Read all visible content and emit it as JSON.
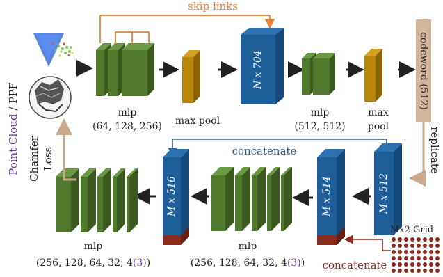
{
  "colors": {
    "green_front": "#4f7a2e",
    "green_side": "#3a5a1f",
    "green_top": "#6b9a45",
    "gold_front": "#b8860b",
    "blue_front": "#1f5f99",
    "blue_side": "#154a7a",
    "skip_orange": "#e8823a",
    "concat_blue": "#2a5f8f",
    "concat_red": "#8b2a1e",
    "brown_bar": "#d2b49a",
    "purple": "#6a3d9a",
    "black": "#222222"
  },
  "input": {
    "label_colored": "Point Cloud",
    "label_sep": " / ",
    "label_plain": "PPF",
    "point_cloud_icon": "point-cloud-icon",
    "ppf_icon": "ppf-sphere-icon"
  },
  "encoder": {
    "skip_label": "skip links",
    "mlp1_label": "mlp",
    "mlp1_dims": "(64, 128, 256)",
    "maxpool1_label": "max pool",
    "feature_label": "N x 704",
    "mlp2_label": "mlp",
    "mlp2_dims": "(512, 512)",
    "maxpool2_line1": "max",
    "maxpool2_line2": "pool",
    "codeword_label": "codeword (512)",
    "replicate_label": "replicate"
  },
  "decoder": {
    "concat_top_label": "concatenate",
    "concat_bottom_label": "concatenate",
    "grid_label": "Mx2 Grid",
    "m512_label": "M x 512",
    "m514_label": "M x 514",
    "m516_label": "M x 516",
    "mlp_label": "mlp",
    "mlp_dims_prefix": "(256, 128, 64, 32, 4",
    "mlp_dims_alt": "(3)",
    "mlp_dims_suffix": ")",
    "loss_line1": "Chamfer",
    "loss_line2": "Loss"
  }
}
